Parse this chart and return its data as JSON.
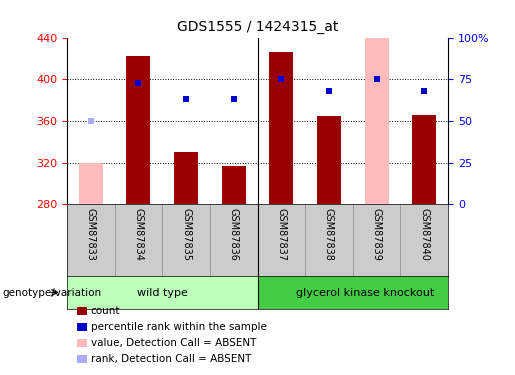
{
  "title": "GDS1555 / 1424315_at",
  "samples": [
    "GSM87833",
    "GSM87834",
    "GSM87835",
    "GSM87836",
    "GSM87837",
    "GSM87838",
    "GSM87839",
    "GSM87840"
  ],
  "count_values": [
    320,
    422,
    330,
    317,
    426,
    365,
    440,
    366
  ],
  "count_absent": [
    true,
    false,
    false,
    false,
    false,
    false,
    true,
    false
  ],
  "rank_pct": [
    50,
    73,
    63,
    63,
    75,
    68,
    75,
    68
  ],
  "rank_absent": [
    true,
    false,
    false,
    false,
    false,
    false,
    false,
    false
  ],
  "baseline": 280,
  "ylim_left": [
    280,
    440
  ],
  "ylim_right": [
    0,
    100
  ],
  "yticks_left": [
    280,
    320,
    360,
    400,
    440
  ],
  "yticks_right": [
    0,
    25,
    50,
    75,
    100
  ],
  "yticklabels_right": [
    "0",
    "25",
    "50",
    "75",
    "100%"
  ],
  "group_labels": [
    "wild type",
    "glycerol kinase knockout"
  ],
  "bar_color_present": "#990000",
  "bar_color_absent": "#ffbbbb",
  "rank_color_present": "#0000cc",
  "rank_color_absent": "#aaaaff",
  "bar_width": 0.5,
  "genotype_label": "genotype/variation",
  "legend_items": [
    {
      "label": "count",
      "color": "#990000"
    },
    {
      "label": "percentile rank within the sample",
      "color": "#0000cc"
    },
    {
      "label": "value, Detection Call = ABSENT",
      "color": "#ffbbbb"
    },
    {
      "label": "rank, Detection Call = ABSENT",
      "color": "#aaaaff"
    }
  ]
}
